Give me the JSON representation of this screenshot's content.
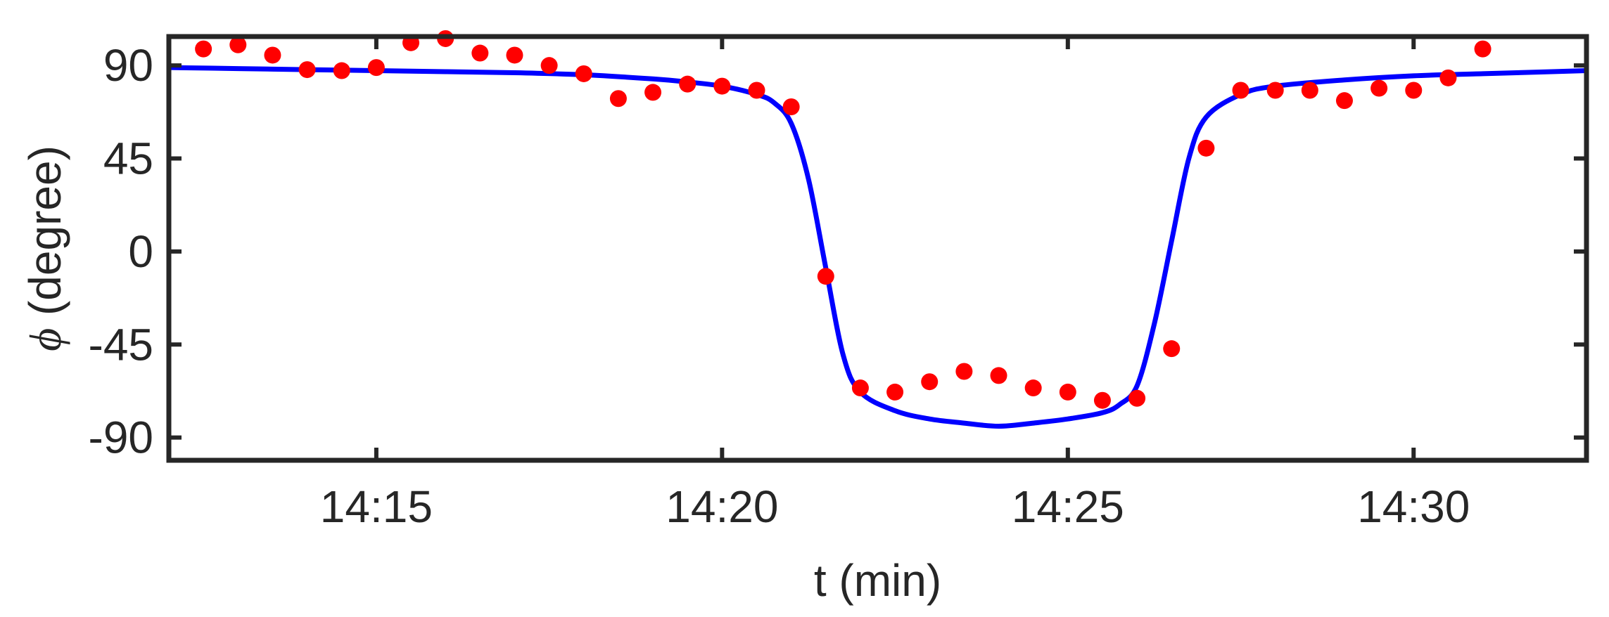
{
  "chart_data": {
    "type": "line",
    "xlabel": "t (min)",
    "ylabel_symbol": "ϕ",
    "ylabel_text": " (degree)",
    "x_unit": "time of day",
    "xlim": [
      "14:12",
      "14:32.5"
    ],
    "ylim": [
      -101,
      104
    ],
    "xticks": [
      "14:15",
      "14:20",
      "14:25",
      "14:30"
    ],
    "yticks": [
      90,
      45,
      0,
      -45,
      -90
    ],
    "ytick_labels": [
      "90",
      "45",
      "0",
      "-45",
      "-90"
    ],
    "grid": false,
    "legend": "none",
    "colors": {
      "line": "#0000ff",
      "points": "#ff0000",
      "axes": "#262626"
    },
    "series": [
      {
        "type": "line",
        "x": [
          "14:12",
          "14:13",
          "14:14",
          "14:15",
          "14:16",
          "14:17",
          "14:18",
          "14:19",
          "14:19.5",
          "14:20",
          "14:20.5",
          "14:20.75",
          "14:21",
          "14:21.25",
          "14:21.5",
          "14:21.75",
          "14:22",
          "14:22.5",
          "14:23",
          "14:23.5",
          "14:24",
          "14:24.5",
          "14:25",
          "14:25.5",
          "14:25.75",
          "14:26",
          "14:26.25",
          "14:26.5",
          "14:26.75",
          "14:27",
          "14:27.5",
          "14:28",
          "14:29",
          "14:30",
          "14:31",
          "14:32",
          "14:32.5"
        ],
        "y": [
          89,
          88.5,
          88,
          87.5,
          87,
          86.5,
          85.5,
          83.5,
          82,
          80,
          76,
          72,
          62,
          35,
          -8,
          -50,
          -68,
          -77,
          -81,
          -83,
          -84.5,
          -83,
          -81,
          -78,
          -74,
          -65,
          -35,
          5,
          45,
          65,
          76,
          80,
          83,
          85,
          86,
          87,
          87.5
        ]
      },
      {
        "type": "scatter",
        "x": [
          "14:12.5",
          "14:13",
          "14:13.5",
          "14:14",
          "14:14.5",
          "14:15",
          "14:15.5",
          "14:16",
          "14:16.5",
          "14:17",
          "14:17.5",
          "14:18",
          "14:18.5",
          "14:19",
          "14:19.5",
          "14:20",
          "14:20.5",
          "14:21",
          "14:21.5",
          "14:22",
          "14:22.5",
          "14:23",
          "14:23.5",
          "14:24",
          "14:24.5",
          "14:25",
          "14:25.5",
          "14:26",
          "14:26.5",
          "14:27",
          "14:27.5",
          "14:28",
          "14:28.5",
          "14:29",
          "14:29.5",
          "14:30",
          "14:30.5",
          "14:31"
        ],
        "y": [
          98,
          100,
          95,
          88,
          87.5,
          89,
          101,
          103,
          96,
          95,
          90,
          86,
          74,
          77,
          81,
          80,
          78,
          70,
          -12,
          -66,
          -68,
          -63,
          -58,
          -60,
          -66,
          -68,
          -72,
          -71,
          -47,
          50,
          78,
          78,
          78,
          73,
          79,
          78,
          84,
          98
        ]
      }
    ]
  }
}
